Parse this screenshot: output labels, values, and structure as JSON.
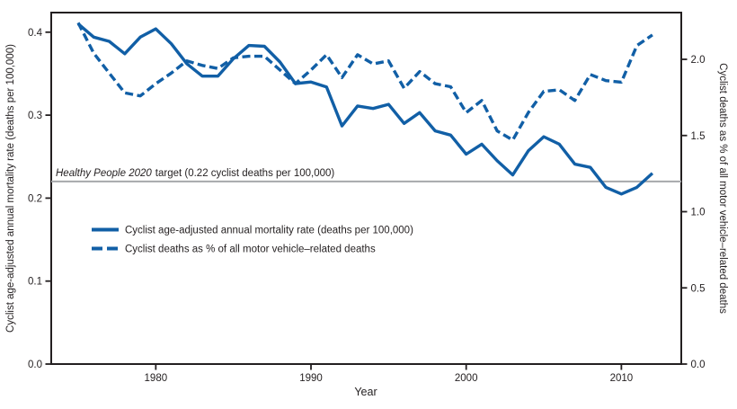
{
  "figure": {
    "background": "#FFFFFF",
    "line_color": "#115FA6",
    "axis_color": "#231F20",
    "x_axis": {
      "label": "Year",
      "tick_labels": [
        "1980",
        "1990",
        "2000",
        "2010"
      ],
      "tick_years": [
        1980,
        1990,
        2000,
        2010
      ]
    },
    "y_left": {
      "label": "Cyclist age-adjusted annual mortality rate (deaths per 100,000)",
      "tick_labels": [
        "0.0",
        "0.1",
        "0.2",
        "0.3",
        "0.4"
      ],
      "tick_values": [
        0,
        0.1,
        0.2,
        0.3,
        0.4
      ]
    },
    "y_right": {
      "label": "Cyclist deaths as % of all motor vehicle–related deaths",
      "tick_labels": [
        "0.0",
        "0.5",
        "1.0",
        "1.5",
        "2.0"
      ],
      "tick_values": [
        0,
        0.5,
        1.0,
        1.5,
        2.0
      ]
    }
  },
  "target": {
    "italic_text": "Healthy People 2020",
    "rest_text": "target (0.22 cyclist deaths per 100,000)",
    "value": 0.22,
    "line_color": "#A6A8AB"
  },
  "legend": {
    "items": [
      {
        "label": "Cyclist age-adjusted annual mortality rate (deaths per 100,000)",
        "style": "solid"
      },
      {
        "label": "Cyclist deaths as % of all motor vehicle–related deaths",
        "style": "dashed"
      }
    ]
  },
  "chart_data": {
    "type": "line",
    "x": [
      1975,
      1976,
      1977,
      1978,
      1979,
      1980,
      1981,
      1982,
      1983,
      1984,
      1985,
      1986,
      1987,
      1988,
      1989,
      1990,
      1991,
      1992,
      1993,
      1994,
      1995,
      1996,
      1997,
      1998,
      1999,
      2000,
      2001,
      2002,
      2003,
      2004,
      2005,
      2006,
      2007,
      2008,
      2009,
      2010,
      2011,
      2012
    ],
    "series": [
      {
        "name": "Cyclist age-adjusted annual mortality rate (deaths per 100,000)",
        "axis": "left",
        "style": "solid",
        "values": [
          0.41,
          0.394,
          0.389,
          0.374,
          0.394,
          0.404,
          0.386,
          0.362,
          0.347,
          0.347,
          0.368,
          0.384,
          0.383,
          0.364,
          0.338,
          0.34,
          0.334,
          0.287,
          0.311,
          0.308,
          0.313,
          0.29,
          0.303,
          0.281,
          0.276,
          0.253,
          0.265,
          0.245,
          0.228,
          0.257,
          0.274,
          0.265,
          0.241,
          0.237,
          0.213,
          0.205,
          0.213,
          0.23
        ]
      },
      {
        "name": "Cyclist deaths as % of all motor vehicle–related deaths",
        "axis": "right",
        "style": "dashed",
        "values": [
          2.24,
          2.04,
          1.91,
          1.78,
          1.76,
          1.84,
          1.91,
          1.99,
          1.96,
          1.94,
          2.01,
          2.02,
          2.02,
          1.93,
          1.84,
          1.93,
          2.03,
          1.88,
          2.03,
          1.97,
          1.99,
          1.81,
          1.92,
          1.84,
          1.82,
          1.65,
          1.73,
          1.53,
          1.47,
          1.65,
          1.79,
          1.8,
          1.73,
          1.9,
          1.86,
          1.85,
          2.09,
          2.16
        ]
      }
    ],
    "xlabel": "Year",
    "ylabel_left": "Cyclist age-adjusted annual mortality rate (deaths per 100,000)",
    "ylabel_right": "Cyclist deaths as % of all motor vehicle–related deaths",
    "ylim_left": [
      0,
      0.424
    ],
    "ylim_right": [
      0,
      2.31
    ],
    "xlim": [
      1973.3,
      2013.8
    ],
    "grid": false,
    "legend_position": "inside-left-middle",
    "target_line": {
      "label": "Healthy People 2020 target",
      "value_left_axis": 0.22
    }
  }
}
